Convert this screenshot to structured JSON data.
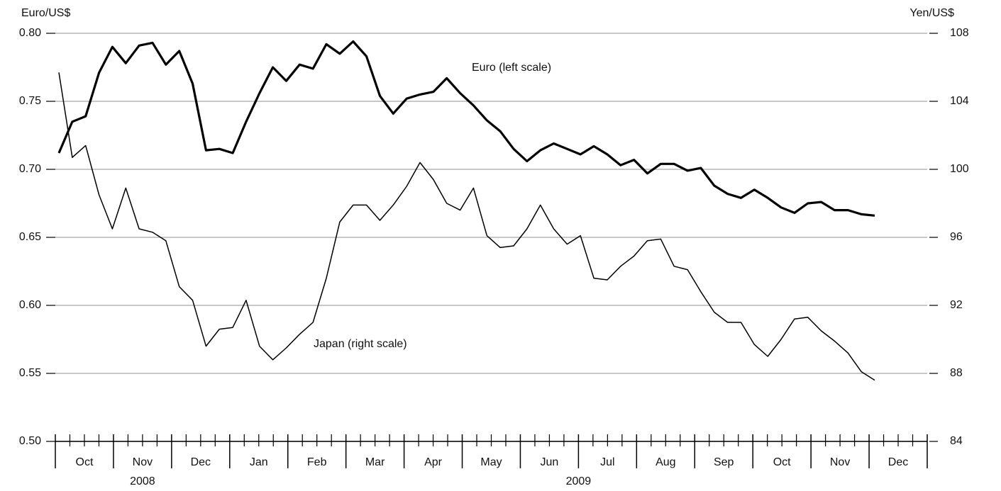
{
  "chart_data": {
    "type": "line",
    "y_label": "Euro/US$",
    "y2_label": "Yen/US$",
    "ylim": [
      0.5,
      0.8
    ],
    "yticks": [
      {
        "value": 0.5,
        "label": "0.50"
      },
      0.55,
      {
        "value": 0.6,
        "label": "0.60"
      },
      0.65,
      {
        "value": 0.7,
        "label": "0.70"
      },
      0.75,
      {
        "value": 0.8,
        "label": "0.80"
      }
    ],
    "y2lim": [
      84,
      108
    ],
    "y2ticks": [
      84,
      88,
      92,
      96,
      100,
      104,
      108
    ],
    "grid": true,
    "x_axis": {
      "groups": [
        {
          "label": "2008",
          "months": [
            "Oct",
            "Nov",
            "Dec"
          ]
        },
        {
          "label": "2009",
          "months": [
            "Jan",
            "Feb",
            "Mar",
            "Apr",
            "May",
            "Jun",
            "Jul",
            "Aug",
            "Sep",
            "Oct",
            "Nov",
            "Dec"
          ]
        }
      ]
    },
    "series": [
      {
        "name": "Euro (left scale)",
        "color": "#000000",
        "values": [
          0.712,
          0.735,
          0.739,
          0.771,
          0.79,
          0.778,
          0.791,
          0.793,
          0.777,
          0.787,
          0.763,
          0.714,
          0.715,
          0.712,
          0.735,
          0.756,
          0.775,
          0.765,
          0.777,
          0.774,
          0.792,
          0.785,
          0.794,
          0.783,
          0.754,
          0.741,
          0.752,
          0.755,
          0.757,
          0.767,
          0.756,
          0.747,
          0.736,
          0.728,
          0.715,
          0.706,
          0.714,
          0.719,
          0.715,
          0.711,
          0.717,
          0.711,
          0.703,
          0.707,
          0.697,
          0.704,
          0.704,
          0.699,
          0.701,
          0.688,
          0.682,
          0.679,
          0.685,
          0.679,
          0.672,
          0.668,
          0.675,
          0.676,
          0.67,
          0.67,
          0.667,
          0.666
        ]
      },
      {
        "name": "Japan (right scale)",
        "color": "#000000",
        "axis": "y2",
        "values": [
          105.7,
          100.7,
          101.4,
          98.5,
          96.5,
          98.9,
          96.5,
          96.3,
          95.8,
          93.1,
          92.3,
          89.6,
          90.6,
          90.7,
          92.3,
          89.6,
          88.8,
          89.5,
          90.3,
          91.0,
          93.6,
          96.9,
          97.9,
          97.9,
          97.0,
          97.9,
          99.0,
          100.4,
          99.4,
          98.0,
          97.6,
          98.9,
          96.1,
          95.4,
          95.5,
          96.5,
          97.9,
          96.5,
          95.6,
          96.1,
          93.6,
          93.5,
          94.3,
          94.9,
          95.8,
          95.9,
          94.3,
          94.1,
          92.8,
          91.6,
          91.0,
          91.0,
          89.7,
          89.0,
          90.0,
          91.2,
          91.3,
          90.5,
          89.9,
          89.2,
          88.1,
          87.6
        ]
      }
    ]
  }
}
